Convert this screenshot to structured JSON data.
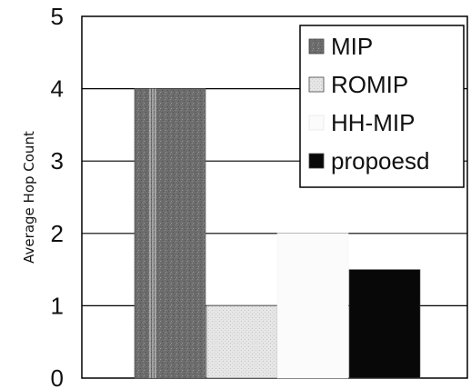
{
  "chart_data": {
    "type": "bar",
    "ylabel": "Average Hop Count",
    "xlabel": "",
    "ylim": [
      0,
      5
    ],
    "yticks": [
      "0",
      "1",
      "2",
      "3",
      "4",
      "5"
    ],
    "grid": true,
    "legend_position": "top-right",
    "series": [
      {
        "name": "MIP",
        "values": [
          4
        ],
        "color": "#707070",
        "pattern": "speckle"
      },
      {
        "name": "ROMIP",
        "values": [
          1
        ],
        "color": "#e2e2e2",
        "pattern": "dots"
      },
      {
        "name": "HH-MIP",
        "values": [
          2
        ],
        "color": "#fbfbfb",
        "pattern": "none"
      },
      {
        "name": "propoesd",
        "values": [
          1.5
        ],
        "color": "#080808",
        "pattern": "none"
      }
    ]
  }
}
